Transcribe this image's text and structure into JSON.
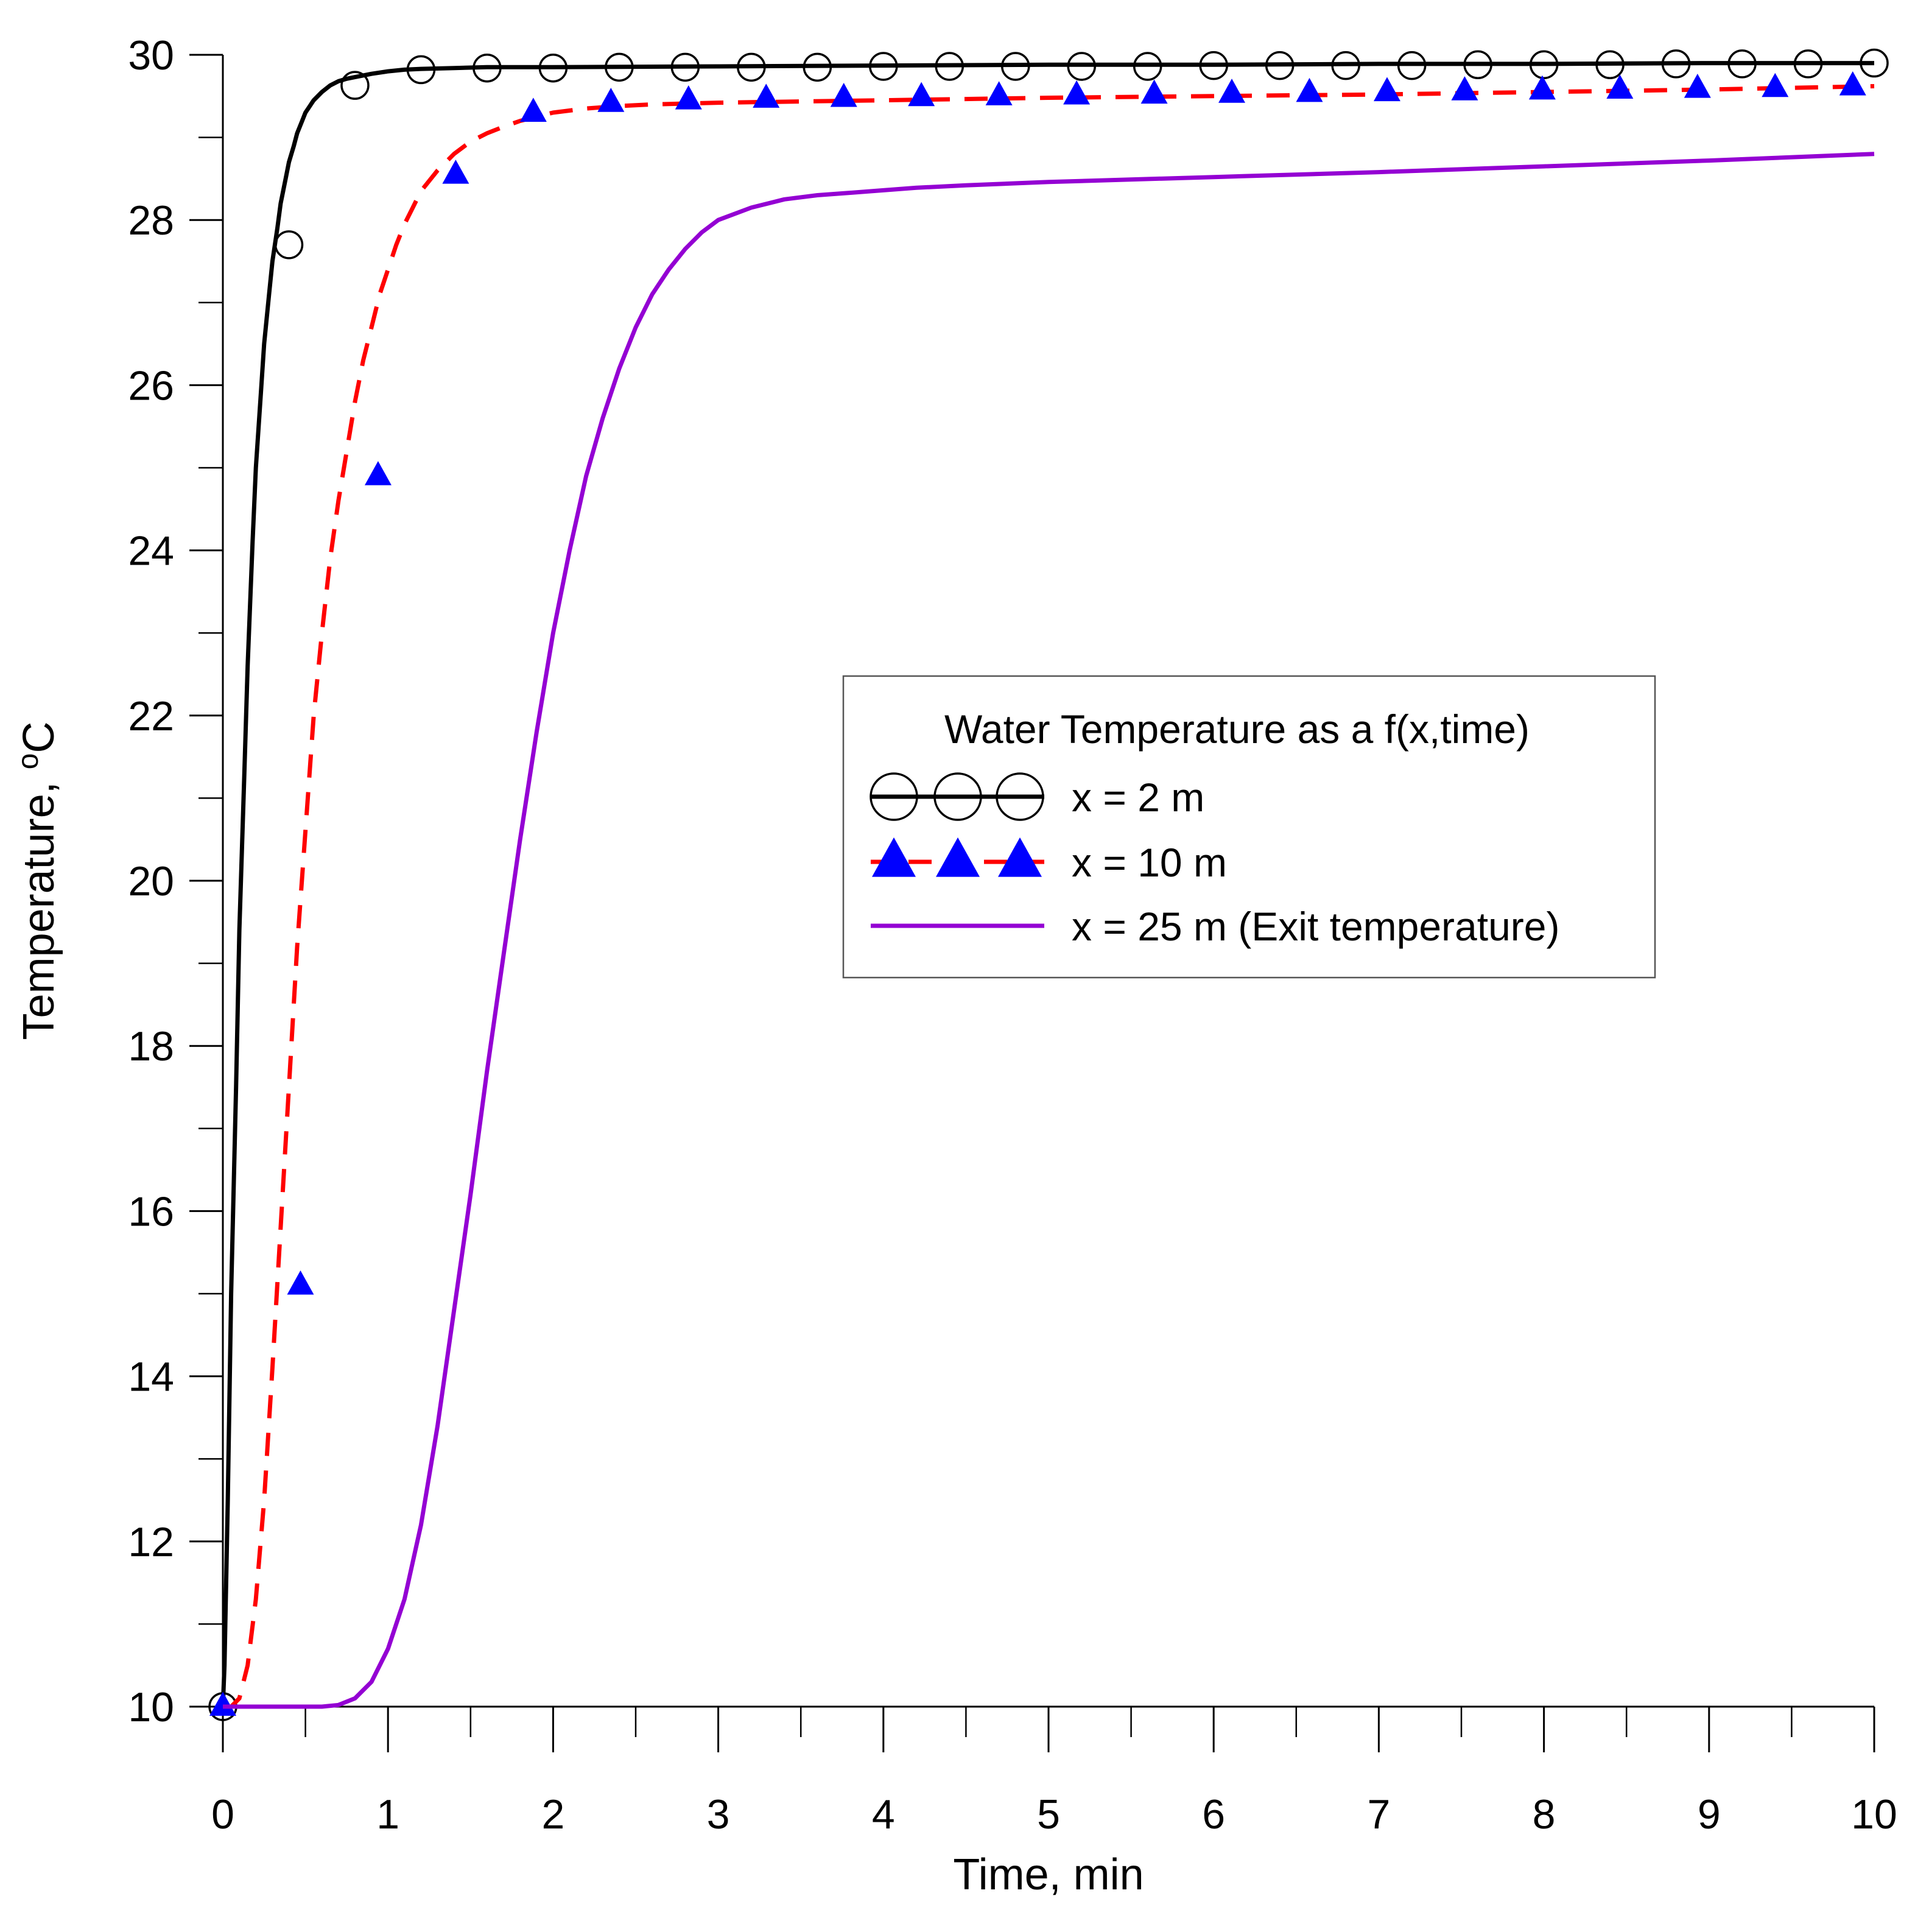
{
  "chart_data": {
    "type": "line",
    "title": "",
    "xlabel": "Time, min",
    "ylabel_prefix": "Temperature, ",
    "ylabel_sup": "o",
    "ylabel_suffix": "C",
    "xlim": [
      0,
      10
    ],
    "ylim": [
      10,
      30
    ],
    "grid": false,
    "x_ticks": [
      {
        "value": 0,
        "label": "0"
      },
      {
        "value": 1,
        "label": "1"
      },
      {
        "value": 2,
        "label": "2"
      },
      {
        "value": 3,
        "label": "3"
      },
      {
        "value": 4,
        "label": "4"
      },
      {
        "value": 5,
        "label": "5"
      },
      {
        "value": 6,
        "label": "6"
      },
      {
        "value": 7,
        "label": "7"
      },
      {
        "value": 8,
        "label": "8"
      },
      {
        "value": 9,
        "label": "9"
      },
      {
        "value": 10,
        "label": "10"
      }
    ],
    "x_minor_step": 0.5,
    "y_ticks": [
      {
        "value": 10,
        "label": "10"
      },
      {
        "value": 12,
        "label": "12"
      },
      {
        "value": 14,
        "label": "14"
      },
      {
        "value": 16,
        "label": "16"
      },
      {
        "value": 18,
        "label": "18"
      },
      {
        "value": 20,
        "label": "20"
      },
      {
        "value": 22,
        "label": "22"
      },
      {
        "value": 24,
        "label": "24"
      },
      {
        "value": 26,
        "label": "26"
      },
      {
        "value": 28,
        "label": "28"
      },
      {
        "value": 30,
        "label": "30"
      }
    ],
    "y_minor_step": 1,
    "legend": {
      "title": "Water Temperature as a f(x,time)",
      "placement": "center-right"
    },
    "series": [
      {
        "name": "x = 2 m",
        "color": "#000000",
        "dash": "solid",
        "marker": "open-circle",
        "marker_color": "#000000",
        "x": [
          0,
          0.01,
          0.03,
          0.05,
          0.08,
          0.1,
          0.13,
          0.15,
          0.18,
          0.2,
          0.23,
          0.25,
          0.28,
          0.3,
          0.33,
          0.35,
          0.38,
          0.4,
          0.43,
          0.45,
          0.48,
          0.5,
          0.55,
          0.6,
          0.65,
          0.7,
          0.75,
          0.8,
          0.9,
          1.0,
          1.1,
          1.2,
          1.4,
          1.6,
          1.8,
          2.0,
          3.0,
          4.0,
          5.0,
          6.0,
          7.0,
          8.0,
          9.0,
          10.0
        ],
        "y": [
          10.0,
          10.5,
          12.5,
          15.0,
          17.5,
          19.4,
          21.3,
          22.6,
          24.1,
          25.0,
          25.9,
          26.5,
          27.1,
          27.5,
          27.9,
          28.2,
          28.5,
          28.7,
          28.9,
          29.05,
          29.2,
          29.3,
          29.45,
          29.55,
          29.63,
          29.68,
          29.71,
          29.73,
          29.77,
          29.8,
          29.82,
          29.83,
          29.84,
          29.85,
          29.85,
          29.85,
          29.86,
          29.87,
          29.88,
          29.88,
          29.89,
          29.89,
          29.9,
          29.9
        ],
        "marker_x": [
          0.0,
          0.4,
          0.8,
          1.2,
          1.6,
          2.0,
          2.4,
          2.8,
          3.2,
          3.6,
          4.0,
          4.4,
          4.8,
          5.2,
          5.6,
          6.0,
          6.4,
          6.8,
          7.2,
          7.6,
          8.0,
          8.4,
          8.8,
          9.2,
          9.6,
          10.0
        ],
        "marker_y": [
          10.0,
          27.7,
          29.63,
          29.82,
          29.84,
          29.84,
          29.85,
          29.85,
          29.85,
          29.85,
          29.86,
          29.86,
          29.86,
          29.86,
          29.86,
          29.87,
          29.87,
          29.87,
          29.87,
          29.88,
          29.88,
          29.88,
          29.89,
          29.89,
          29.89,
          29.9
        ]
      },
      {
        "name": "x = 10 m",
        "color": "#ff0000",
        "dash": "dashed",
        "marker": "filled-triangle",
        "marker_color": "#0000ff",
        "x": [
          0,
          0.05,
          0.1,
          0.15,
          0.2,
          0.25,
          0.3,
          0.35,
          0.4,
          0.45,
          0.5,
          0.55,
          0.6,
          0.65,
          0.7,
          0.75,
          0.8,
          0.85,
          0.9,
          0.95,
          1.0,
          1.05,
          1.1,
          1.15,
          1.2,
          1.3,
          1.4,
          1.5,
          1.6,
          1.7,
          1.8,
          1.9,
          2.0,
          2.2,
          2.4,
          2.6,
          3.0,
          4.0,
          5.0,
          6.0,
          7.0,
          8.0,
          9.0,
          10.0
        ],
        "y": [
          10.0,
          10.0,
          10.1,
          10.5,
          11.3,
          12.5,
          14.1,
          15.8,
          17.5,
          19.2,
          20.6,
          22.0,
          23.0,
          23.9,
          24.6,
          25.2,
          25.8,
          26.3,
          26.7,
          27.1,
          27.4,
          27.7,
          27.95,
          28.15,
          28.35,
          28.6,
          28.8,
          28.95,
          29.05,
          29.13,
          29.2,
          29.25,
          29.3,
          29.35,
          29.38,
          29.4,
          29.42,
          29.45,
          29.48,
          29.5,
          29.52,
          29.55,
          29.58,
          29.62
        ],
        "marker_x": [
          0.0,
          0.47,
          0.94,
          1.41,
          1.88,
          2.35,
          2.82,
          3.29,
          3.76,
          4.23,
          4.7,
          5.17,
          5.64,
          6.11,
          6.58,
          7.05,
          7.52,
          7.99,
          8.46,
          8.93,
          9.4,
          9.87
        ],
        "marker_y": [
          10.0,
          15.1,
          24.9,
          28.55,
          29.3,
          29.42,
          29.45,
          29.47,
          29.48,
          29.49,
          29.5,
          29.51,
          29.52,
          29.53,
          29.54,
          29.55,
          29.56,
          29.57,
          29.58,
          29.59,
          29.6,
          29.62
        ]
      },
      {
        "name": "x = 25 m (Exit temperature)",
        "color": "#9400d3",
        "dash": "solid",
        "marker": "none",
        "marker_color": "#9400d3",
        "x": [
          0,
          0.4,
          0.6,
          0.7,
          0.8,
          0.9,
          1.0,
          1.1,
          1.2,
          1.3,
          1.4,
          1.5,
          1.6,
          1.7,
          1.8,
          1.9,
          2.0,
          2.1,
          2.2,
          2.3,
          2.4,
          2.5,
          2.6,
          2.7,
          2.8,
          2.9,
          3.0,
          3.2,
          3.4,
          3.6,
          3.8,
          4.0,
          4.2,
          4.5,
          5.0,
          6.0,
          7.0,
          8.0,
          9.0,
          10.0
        ],
        "y": [
          10.0,
          10.0,
          10.0,
          10.02,
          10.1,
          10.3,
          10.7,
          11.3,
          12.2,
          13.4,
          14.8,
          16.2,
          17.7,
          19.1,
          20.5,
          21.8,
          23.0,
          24.0,
          24.9,
          25.6,
          26.2,
          26.7,
          27.1,
          27.4,
          27.65,
          27.85,
          28.0,
          28.15,
          28.25,
          28.3,
          28.33,
          28.36,
          28.39,
          28.42,
          28.46,
          28.52,
          28.58,
          28.65,
          28.72,
          28.8
        ]
      }
    ]
  }
}
